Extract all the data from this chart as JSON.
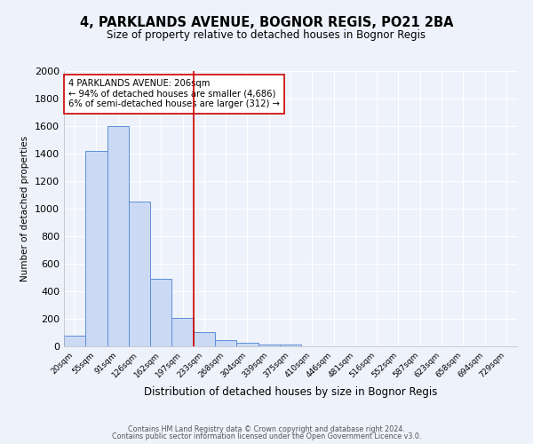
{
  "title1": "4, PARKLANDS AVENUE, BOGNOR REGIS, PO21 2BA",
  "title2": "Size of property relative to detached houses in Bognor Regis",
  "xlabel": "Distribution of detached houses by size in Bognor Regis",
  "ylabel": "Number of detached properties",
  "bin_labels": [
    "20sqm",
    "55sqm",
    "91sqm",
    "126sqm",
    "162sqm",
    "197sqm",
    "233sqm",
    "268sqm",
    "304sqm",
    "339sqm",
    "375sqm",
    "410sqm",
    "446sqm",
    "481sqm",
    "516sqm",
    "552sqm",
    "587sqm",
    "623sqm",
    "658sqm",
    "694sqm",
    "729sqm"
  ],
  "bar_heights": [
    80,
    1420,
    1600,
    1050,
    490,
    205,
    105,
    45,
    25,
    15,
    10,
    0,
    0,
    0,
    0,
    0,
    0,
    0,
    0,
    0,
    0
  ],
  "bar_color": "#ccd9f5",
  "bar_edge_color": "#5b8ed6",
  "vline_x": 5.5,
  "vline_color": "#cc0000",
  "annotation_text": "4 PARKLANDS AVENUE: 206sqm\n← 94% of detached houses are smaller (4,686)\n6% of semi-detached houses are larger (312) →",
  "annotation_box_color": "#ffffff",
  "annotation_box_edge": "#cc0000",
  "ylim": [
    0,
    2000
  ],
  "yticks": [
    0,
    200,
    400,
    600,
    800,
    1000,
    1200,
    1400,
    1600,
    1800,
    2000
  ],
  "footer1": "Contains HM Land Registry data © Crown copyright and database right 2024.",
  "footer2": "Contains public sector information licensed under the Open Government Licence v3.0.",
  "bg_color": "#eef2fb",
  "grid_color": "#ffffff",
  "title1_fontsize": 10.5,
  "title2_fontsize": 8.5
}
